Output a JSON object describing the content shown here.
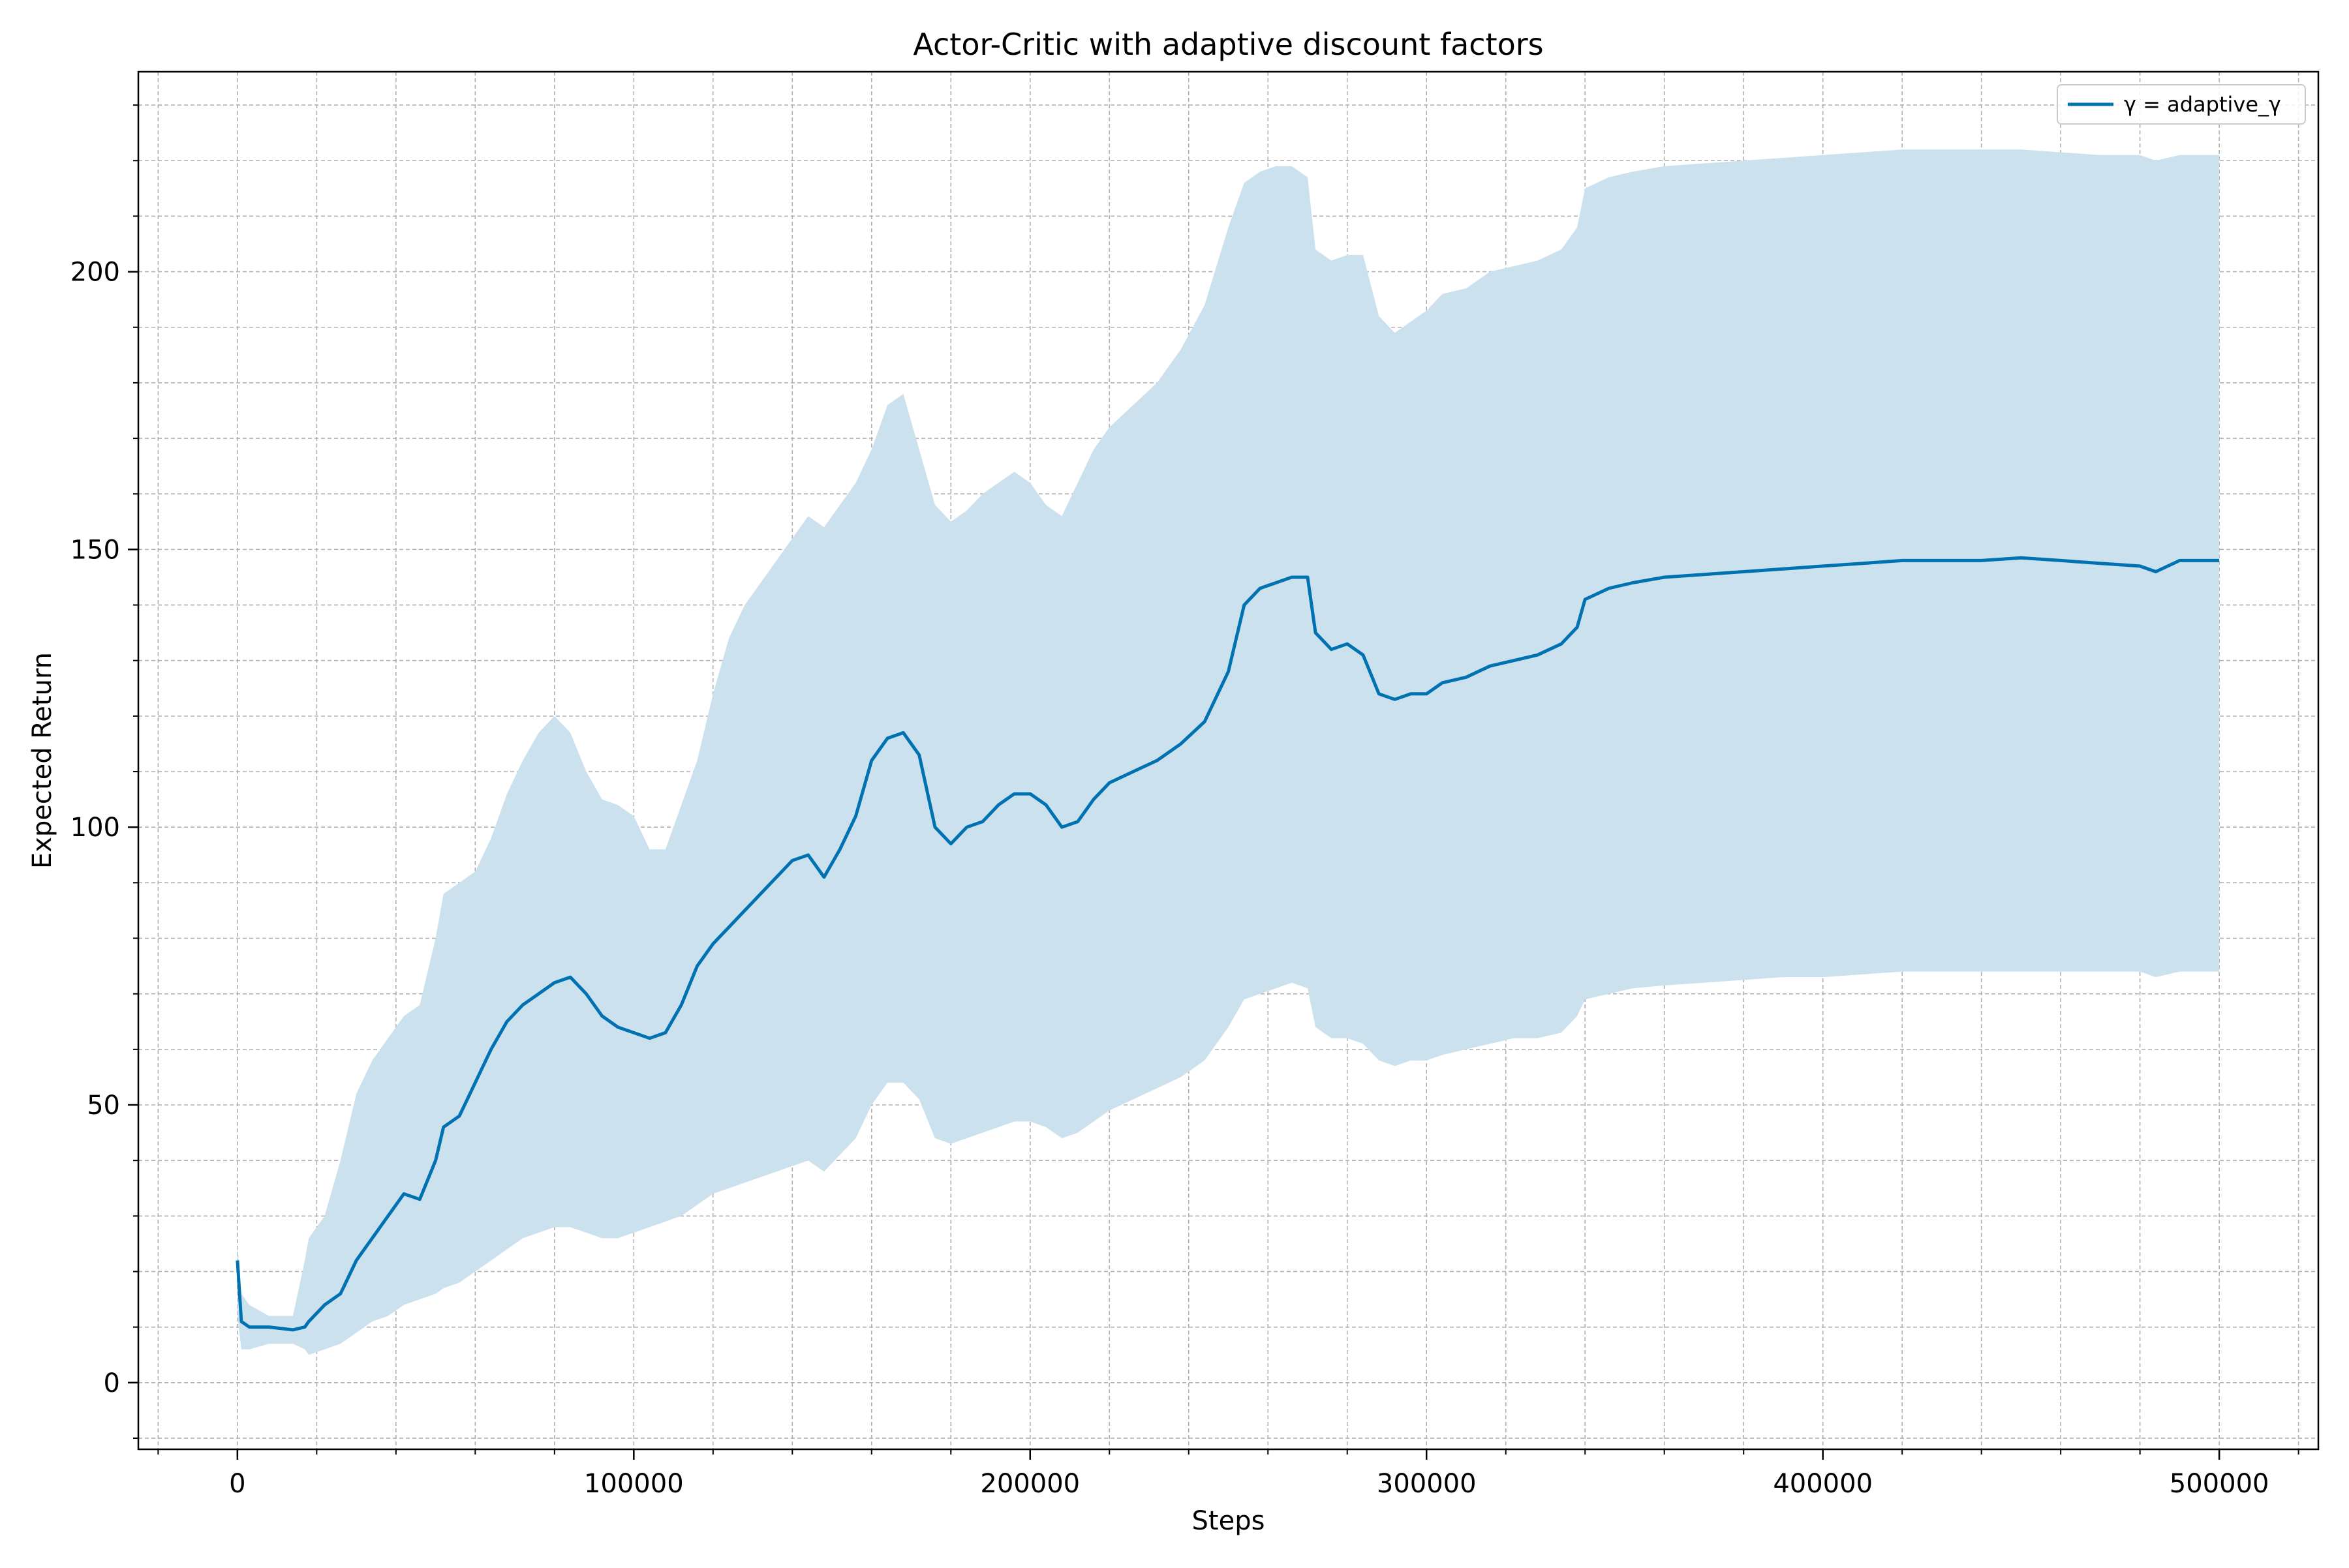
{
  "chart_data": {
    "type": "line",
    "title": "Actor-Critic with adaptive discount factors",
    "xlabel": "Steps",
    "ylabel": "Expected Return",
    "xlim": [
      -25000,
      525000
    ],
    "ylim": [
      -12,
      236
    ],
    "xticks": [
      0,
      100000,
      200000,
      300000,
      400000,
      500000
    ],
    "xtick_labels": [
      "0",
      "100000",
      "200000",
      "300000",
      "400000",
      "500000"
    ],
    "xticks_minor_step": 20000,
    "yticks": [
      0,
      50,
      100,
      150,
      200
    ],
    "ytick_labels": [
      "0",
      "50",
      "100",
      "150",
      "200"
    ],
    "yticks_minor_step": 10,
    "grid": true,
    "legend": {
      "location": "top-right",
      "entries": [
        "γ = adaptive_γ"
      ]
    },
    "colors": {
      "line": "#0072b2",
      "band": "#cce1ee",
      "grid": "#b0b0b0"
    },
    "series": [
      {
        "name": "γ = adaptive_γ",
        "x": [
          0,
          1000,
          3000,
          8000,
          14000,
          17000,
          18000,
          22000,
          26000,
          30000,
          34000,
          38000,
          42000,
          46000,
          50000,
          52000,
          56000,
          60000,
          64000,
          68000,
          72000,
          76000,
          80000,
          84000,
          88000,
          92000,
          96000,
          100000,
          104000,
          108000,
          112000,
          116000,
          120000,
          124000,
          128000,
          132000,
          136000,
          140000,
          144000,
          148000,
          152000,
          156000,
          160000,
          164000,
          168000,
          172000,
          176000,
          180000,
          184000,
          188000,
          192000,
          196000,
          200000,
          204000,
          208000,
          212000,
          216000,
          220000,
          226000,
          232000,
          238000,
          244000,
          250000,
          254000,
          258000,
          262000,
          266000,
          270000,
          272000,
          276000,
          280000,
          284000,
          288000,
          292000,
          296000,
          300000,
          304000,
          310000,
          316000,
          322000,
          328000,
          334000,
          338000,
          340000,
          346000,
          352000,
          360000,
          370000,
          380000,
          390000,
          400000,
          410000,
          420000,
          430000,
          440000,
          450000,
          460000,
          470000,
          480000,
          484000,
          490000,
          500000
        ],
        "y": [
          22,
          11,
          10,
          10,
          9.5,
          10,
          11,
          14,
          16,
          22,
          26,
          30,
          34,
          33,
          40,
          46,
          48,
          54,
          60,
          65,
          68,
          70,
          72,
          73,
          70,
          66,
          64,
          63,
          62,
          63,
          68,
          75,
          79,
          82,
          85,
          88,
          91,
          94,
          95,
          91,
          96,
          102,
          112,
          116,
          117,
          113,
          100,
          97,
          100,
          101,
          104,
          106,
          106,
          104,
          100,
          101,
          105,
          108,
          110,
          112,
          115,
          119,
          128,
          140,
          143,
          144,
          145,
          145,
          135,
          132,
          133,
          131,
          124,
          123,
          124,
          124,
          126,
          127,
          129,
          130,
          131,
          133,
          136,
          141,
          143,
          144,
          145,
          145.5,
          146,
          146.5,
          147,
          147.5,
          148,
          148,
          148,
          148.5,
          148,
          147.5,
          147,
          146,
          148,
          148
        ],
        "upper": [
          25,
          16,
          14,
          12,
          12,
          22,
          26,
          30,
          40,
          52,
          58,
          62,
          66,
          68,
          80,
          88,
          90,
          92,
          98,
          106,
          112,
          117,
          120,
          117,
          110,
          105,
          104,
          102,
          96,
          96,
          104,
          112,
          124,
          134,
          140,
          144,
          148,
          152,
          156,
          154,
          158,
          162,
          168,
          176,
          178,
          168,
          158,
          155,
          157,
          160,
          162,
          164,
          162,
          158,
          156,
          162,
          168,
          172,
          176,
          180,
          186,
          194,
          208,
          216,
          218,
          219,
          219,
          217,
          204,
          202,
          203,
          203,
          192,
          189,
          191,
          193,
          196,
          197,
          200,
          201,
          202,
          204,
          208,
          215,
          217,
          218,
          219,
          219.5,
          220,
          220.5,
          221,
          221.5,
          222,
          222,
          222,
          222,
          221.5,
          221,
          221,
          220,
          221,
          221
        ],
        "lower": [
          12,
          6,
          6,
          7,
          7,
          6,
          5,
          6,
          7,
          9,
          11,
          12,
          14,
          15,
          16,
          17,
          18,
          20,
          22,
          24,
          26,
          27,
          28,
          28,
          27,
          26,
          26,
          27,
          28,
          29,
          30,
          32,
          34,
          35,
          36,
          37,
          38,
          39,
          40,
          38,
          41,
          44,
          50,
          54,
          54,
          51,
          44,
          43,
          44,
          45,
          46,
          47,
          47,
          46,
          44,
          45,
          47,
          49,
          51,
          53,
          55,
          58,
          64,
          69,
          70,
          71,
          72,
          71,
          64,
          62,
          62,
          61,
          58,
          57,
          58,
          58,
          59,
          60,
          61,
          62,
          62,
          63,
          66,
          69,
          70,
          71,
          71.5,
          72,
          72.5,
          73,
          73,
          73.5,
          74,
          74,
          74,
          74,
          74,
          74,
          74,
          73,
          74,
          74
        ]
      }
    ]
  }
}
